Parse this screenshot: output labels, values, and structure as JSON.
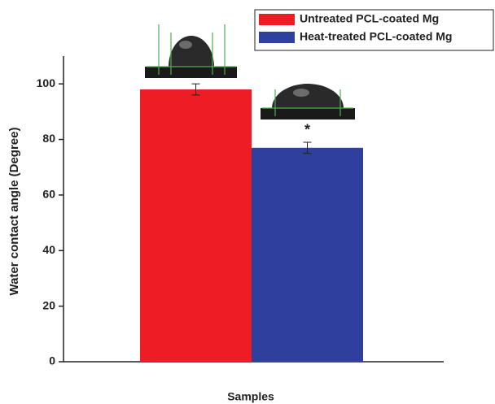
{
  "chart_data": {
    "type": "bar",
    "y_label": "Water contact angle (Degree)",
    "x_label": "Samples",
    "series": [
      {
        "name": "Untreated PCL-coated Mg",
        "color": "#ee1c24",
        "values": [
          98
        ],
        "errors": [
          2
        ]
      },
      {
        "name": "Heat-treated PCL-coated Mg",
        "color": "#2e3f9e",
        "values": [
          77
        ],
        "errors": [
          2
        ]
      }
    ],
    "annotations": [
      "*"
    ],
    "ylim": [
      0,
      110
    ],
    "yticks": [
      0,
      20,
      40,
      60,
      80,
      100
    ],
    "legend": "top-right"
  }
}
